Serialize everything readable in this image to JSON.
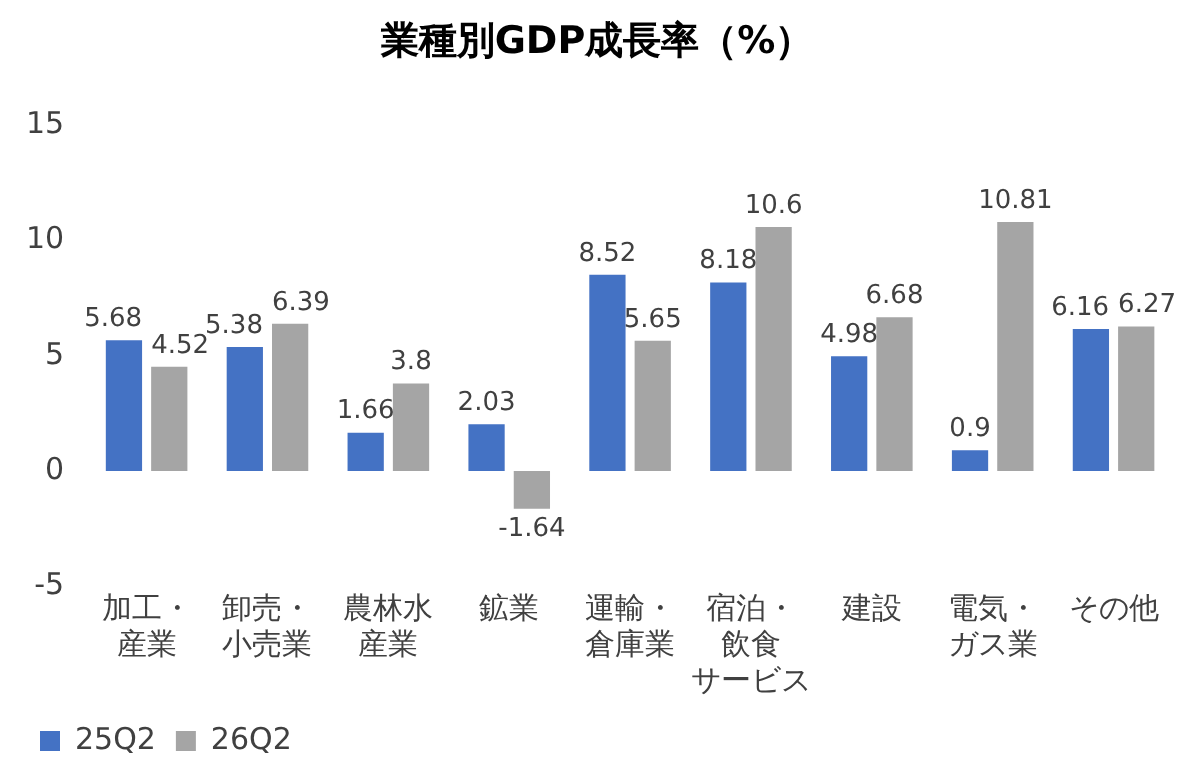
{
  "chart_data": {
    "type": "bar",
    "title": "業種別GDP成長率（%）",
    "categories": [
      "加工・産業",
      "卸売・小売業",
      "農林水産業",
      "鉱業",
      "運輸・倉庫業",
      "宿泊・飲食サービス",
      "建設",
      "電気・ガス業",
      "その他"
    ],
    "series": [
      {
        "name": "25Q2",
        "color": "#4472c4",
        "values": [
          5.68,
          5.38,
          1.66,
          2.03,
          8.52,
          8.18,
          4.98,
          0.9,
          6.16
        ]
      },
      {
        "name": "26Q2",
        "color": "#a5a5a5",
        "values": [
          4.52,
          6.39,
          3.8,
          -1.64,
          5.65,
          10.6,
          6.68,
          10.81,
          6.27
        ]
      }
    ],
    "ylim": [
      -5,
      15
    ],
    "yticks": [
      -5,
      0,
      5,
      10,
      15
    ],
    "grid": false,
    "legend": "bottom left",
    "data_labels": true
  }
}
